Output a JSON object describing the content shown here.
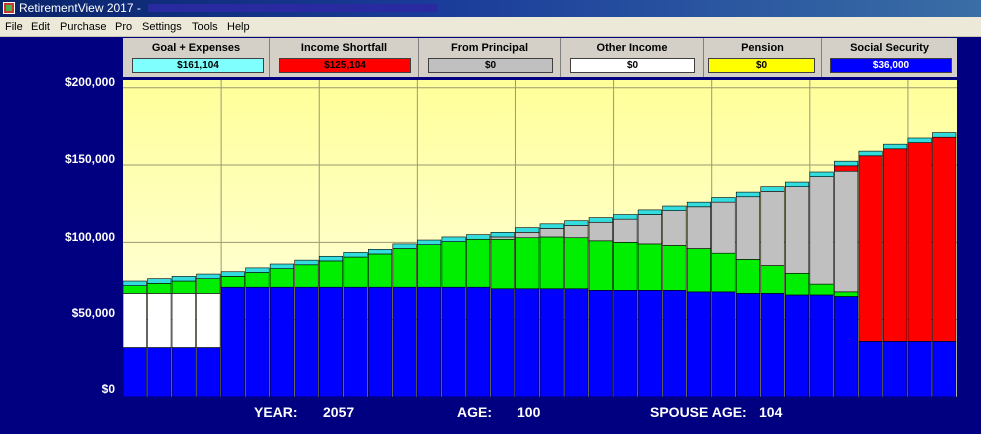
{
  "window": {
    "title": "RetirementView 2017 -"
  },
  "menu": [
    "File",
    "Edit",
    "Purchase",
    "Pro",
    "Settings",
    "Tools",
    "Help"
  ],
  "legend": [
    {
      "label": "Goal + Expenses",
      "value": "$161,104",
      "color": "#80ffff",
      "text_color": "#000000"
    },
    {
      "label": "Income Shortfall",
      "value": "$125,104",
      "color": "#ff0000",
      "text_color": "#000000"
    },
    {
      "label": "From Principal",
      "value": "$0",
      "color": "#c0c0c0",
      "text_color": "#000000"
    },
    {
      "label": "Other Income",
      "value": "$0",
      "color": "#ffffff",
      "text_color": "#000000"
    },
    {
      "label": "Pension",
      "value": "$0",
      "color": "#ffff00",
      "text_color": "#000000"
    },
    {
      "label": "Social Security",
      "value": "$36,000",
      "color": "#0000ff",
      "text_color": "#ffffff"
    }
  ],
  "footer": {
    "year_label": "YEAR:",
    "year_value": "2057",
    "age_label": "AGE:",
    "age_value": "100",
    "spouse_label": "SPOUSE AGE:",
    "spouse_value": "104"
  },
  "chart_data": {
    "type": "bar",
    "stacked": true,
    "ylim": [
      0,
      205000
    ],
    "yticks": [
      "$0",
      "$50,000",
      "$100,000",
      "$150,000",
      "$200,000"
    ],
    "ytick_values": [
      0,
      50000,
      100000,
      150000,
      200000
    ],
    "bar_count": 34,
    "grid": true,
    "colors": {
      "social_security": "#0000ff",
      "other_income": "#ffffff",
      "green_income": "#00ee00",
      "principal": "#c0c0c0",
      "shortfall": "#ff0000",
      "goal_cap": "#33dddd"
    },
    "series": [
      {
        "key": "social_security",
        "values": [
          32000,
          32000,
          32000,
          32000,
          71000,
          71000,
          71000,
          71000,
          71000,
          71000,
          71000,
          71000,
          71000,
          71000,
          71000,
          70000,
          70000,
          70000,
          70000,
          69000,
          69000,
          69000,
          69000,
          68000,
          68000,
          67000,
          67000,
          66000,
          66000,
          65000,
          36000,
          36000,
          36000,
          36000
        ]
      },
      {
        "key": "other_income",
        "values": [
          35000,
          35000,
          35000,
          35000,
          0,
          0,
          0,
          0,
          0,
          0,
          0,
          0,
          0,
          0,
          0,
          0,
          0,
          0,
          0,
          0,
          0,
          0,
          0,
          0,
          0,
          0,
          0,
          0,
          0,
          0,
          0,
          0,
          0,
          0
        ]
      },
      {
        "key": "green_income",
        "values": [
          5000,
          6500,
          8000,
          9500,
          7000,
          9500,
          12000,
          14500,
          17000,
          19500,
          21500,
          25000,
          27500,
          29500,
          31000,
          32000,
          33000,
          33500,
          33000,
          32000,
          31000,
          30000,
          29000,
          28000,
          25000,
          22000,
          18000,
          14000,
          7000,
          3000,
          0,
          0,
          0,
          0
        ]
      },
      {
        "key": "principal",
        "values": [
          0,
          0,
          0,
          0,
          0,
          0,
          0,
          0,
          0,
          0,
          0,
          0,
          0,
          0,
          0,
          1500,
          3500,
          5500,
          8000,
          12000,
          15000,
          19000,
          22500,
          27000,
          33000,
          40500,
          48000,
          56000,
          69500,
          78000,
          0,
          0,
          0,
          0
        ]
      },
      {
        "key": "shortfall",
        "values": [
          0,
          0,
          0,
          0,
          0,
          0,
          0,
          0,
          0,
          0,
          0,
          0,
          0,
          0,
          0,
          0,
          0,
          0,
          0,
          0,
          0,
          0,
          0,
          0,
          0,
          0,
          0,
          0,
          0,
          3500,
          120000,
          124500,
          128500,
          132000
        ]
      },
      {
        "key": "goal_cap",
        "values": [
          3000,
          3000,
          3000,
          3000,
          3000,
          3000,
          3000,
          3000,
          3000,
          3000,
          3000,
          3000,
          3000,
          3000,
          3000,
          3000,
          3000,
          3000,
          3000,
          3000,
          3000,
          3000,
          3000,
          3000,
          3000,
          3000,
          3000,
          3000,
          3000,
          3000,
          3000,
          3000,
          3000,
          3000
        ]
      }
    ]
  }
}
